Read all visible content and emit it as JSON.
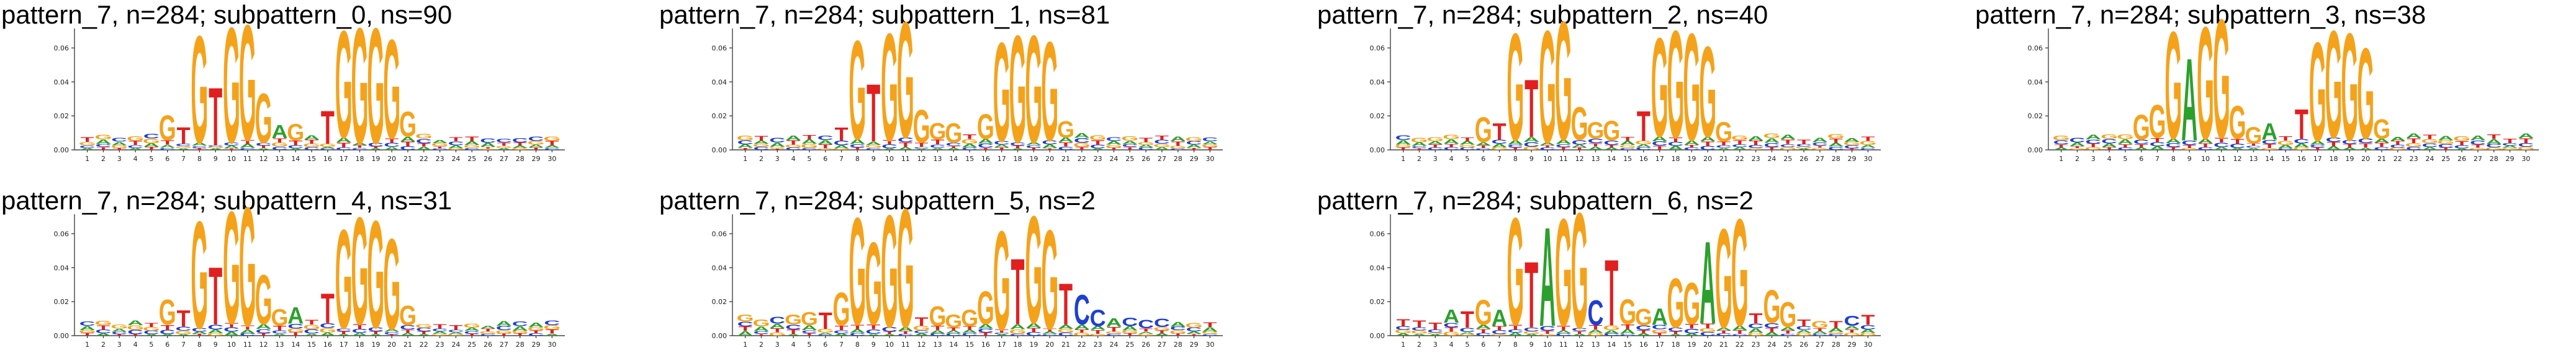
{
  "chart_data": [
    {
      "type": "sequence_logo",
      "title": "pattern_7, n=284; subpattern_0, ns=90",
      "positions": 30,
      "ylim": [
        0,
        0.07
      ],
      "yticks": [
        "0.00",
        "0.02",
        "0.04",
        "0.06"
      ],
      "motif": [
        [
          6,
          "G",
          0.015
        ],
        [
          7,
          "T",
          0.01
        ],
        [
          8,
          "G",
          0.065
        ],
        [
          9,
          "T",
          0.035
        ],
        [
          10,
          "G",
          0.07
        ],
        [
          11,
          "G",
          0.07
        ],
        [
          12,
          "G",
          0.03
        ],
        [
          13,
          "A",
          0.008
        ],
        [
          14,
          "G",
          0.01
        ],
        [
          16,
          "T",
          0.02
        ],
        [
          17,
          "G",
          0.065
        ],
        [
          18,
          "G",
          0.07
        ],
        [
          19,
          "G",
          0.07
        ],
        [
          20,
          "G",
          0.06
        ],
        [
          21,
          "G",
          0.015
        ]
      ]
    },
    {
      "type": "sequence_logo",
      "title": "pattern_7, n=284; subpattern_1, ns=81",
      "positions": 30,
      "ylim": [
        0,
        0.07
      ],
      "yticks": [
        "0.00",
        "0.02",
        "0.04",
        "0.06"
      ],
      "motif": [
        [
          7,
          "T",
          0.008
        ],
        [
          8,
          "G",
          0.06
        ],
        [
          9,
          "T",
          0.035
        ],
        [
          10,
          "G",
          0.065
        ],
        [
          11,
          "G",
          0.07
        ],
        [
          12,
          "G",
          0.02
        ],
        [
          13,
          "G",
          0.01
        ],
        [
          14,
          "G",
          0.012
        ],
        [
          16,
          "G",
          0.015
        ],
        [
          17,
          "G",
          0.06
        ],
        [
          18,
          "G",
          0.065
        ],
        [
          19,
          "G",
          0.065
        ],
        [
          20,
          "G",
          0.06
        ],
        [
          21,
          "G",
          0.01
        ]
      ]
    },
    {
      "type": "sequence_logo",
      "title": "pattern_7, n=284; subpattern_2, ns=40",
      "positions": 30,
      "ylim": [
        0,
        0.07
      ],
      "yticks": [
        "0.00",
        "0.02",
        "0.04",
        "0.06"
      ],
      "motif": [
        [
          6,
          "G",
          0.015
        ],
        [
          7,
          "T",
          0.01
        ],
        [
          8,
          "G",
          0.065
        ],
        [
          9,
          "T",
          0.035
        ],
        [
          10,
          "G",
          0.068
        ],
        [
          11,
          "G",
          0.072
        ],
        [
          12,
          "G",
          0.02
        ],
        [
          13,
          "G",
          0.01
        ],
        [
          14,
          "G",
          0.012
        ],
        [
          16,
          "T",
          0.018
        ],
        [
          17,
          "G",
          0.06
        ],
        [
          18,
          "G",
          0.065
        ],
        [
          19,
          "G",
          0.065
        ],
        [
          20,
          "G",
          0.055
        ],
        [
          21,
          "G",
          0.012
        ]
      ]
    },
    {
      "type": "sequence_logo",
      "title": "pattern_7, n=284; subpattern_3, ns=38",
      "positions": 30,
      "ylim": [
        0,
        0.07
      ],
      "yticks": [
        "0.00",
        "0.02",
        "0.04",
        "0.06"
      ],
      "motif": [
        [
          6,
          "G",
          0.015
        ],
        [
          7,
          "G",
          0.02
        ],
        [
          8,
          "G",
          0.065
        ],
        [
          9,
          "A",
          0.05
        ],
        [
          10,
          "G",
          0.068
        ],
        [
          11,
          "G",
          0.072
        ],
        [
          12,
          "G",
          0.02
        ],
        [
          13,
          "G",
          0.01
        ],
        [
          14,
          "A",
          0.01
        ],
        [
          16,
          "T",
          0.018
        ],
        [
          17,
          "G",
          0.06
        ],
        [
          18,
          "G",
          0.065
        ],
        [
          19,
          "G",
          0.065
        ],
        [
          20,
          "G",
          0.055
        ],
        [
          21,
          "G",
          0.012
        ]
      ]
    },
    {
      "type": "sequence_logo",
      "title": "pattern_7, n=284; subpattern_4, ns=31",
      "positions": 30,
      "ylim": [
        0,
        0.07
      ],
      "yticks": [
        "0.00",
        "0.02",
        "0.04",
        "0.06"
      ],
      "motif": [
        [
          6,
          "G",
          0.015
        ],
        [
          7,
          "T",
          0.01
        ],
        [
          8,
          "G",
          0.065
        ],
        [
          9,
          "T",
          0.035
        ],
        [
          10,
          "G",
          0.068
        ],
        [
          11,
          "G",
          0.072
        ],
        [
          12,
          "G",
          0.03
        ],
        [
          13,
          "G",
          0.01
        ],
        [
          14,
          "A",
          0.01
        ],
        [
          16,
          "T",
          0.018
        ],
        [
          17,
          "G",
          0.06
        ],
        [
          18,
          "G",
          0.065
        ],
        [
          19,
          "G",
          0.065
        ],
        [
          20,
          "G",
          0.055
        ],
        [
          21,
          "G",
          0.012
        ]
      ]
    },
    {
      "type": "sequence_logo",
      "title": "pattern_7, n=284; subpattern_5, ns=2",
      "positions": 30,
      "ylim": [
        0,
        0.07
      ],
      "yticks": [
        "0.00",
        "0.02",
        "0.04",
        "0.06"
      ],
      "motif": [
        [
          1,
          "G",
          0.004
        ],
        [
          2,
          "G",
          0.004
        ],
        [
          3,
          "C",
          0.004
        ],
        [
          4,
          "G",
          0.006
        ],
        [
          5,
          "G",
          0.008
        ],
        [
          6,
          "T",
          0.01
        ],
        [
          7,
          "G",
          0.02
        ],
        [
          8,
          "G",
          0.065
        ],
        [
          9,
          "G",
          0.05
        ],
        [
          10,
          "G",
          0.068
        ],
        [
          11,
          "G",
          0.072
        ],
        [
          12,
          "T",
          0.005
        ],
        [
          13,
          "G",
          0.012
        ],
        [
          14,
          "G",
          0.008
        ],
        [
          15,
          "G",
          0.01
        ],
        [
          16,
          "G",
          0.02
        ],
        [
          17,
          "G",
          0.06
        ],
        [
          18,
          "T",
          0.04
        ],
        [
          19,
          "G",
          0.065
        ],
        [
          20,
          "G",
          0.06
        ],
        [
          21,
          "T",
          0.025
        ],
        [
          22,
          "C",
          0.018
        ],
        [
          23,
          "C",
          0.01
        ],
        [
          24,
          "A",
          0.005
        ],
        [
          25,
          "C",
          0.005
        ],
        [
          26,
          "C",
          0.005
        ],
        [
          27,
          "C",
          0.005
        ]
      ]
    },
    {
      "type": "sequence_logo",
      "title": "pattern_7, n=284; subpattern_6, ns=2",
      "positions": 30,
      "ylim": [
        0,
        0.07
      ],
      "yticks": [
        "0.00",
        "0.02",
        "0.04",
        "0.06"
      ],
      "motif": [
        [
          1,
          "T",
          0.004
        ],
        [
          2,
          "T",
          0.004
        ],
        [
          3,
          "T",
          0.004
        ],
        [
          4,
          "A",
          0.008
        ],
        [
          5,
          "T",
          0.01
        ],
        [
          6,
          "G",
          0.015
        ],
        [
          7,
          "A",
          0.01
        ],
        [
          8,
          "G",
          0.065
        ],
        [
          9,
          "T",
          0.04
        ],
        [
          10,
          "A",
          0.06
        ],
        [
          11,
          "G",
          0.065
        ],
        [
          12,
          "G",
          0.07
        ],
        [
          13,
          "C",
          0.015
        ],
        [
          14,
          "T",
          0.04
        ],
        [
          15,
          "G",
          0.015
        ],
        [
          16,
          "G",
          0.01
        ],
        [
          17,
          "A",
          0.01
        ],
        [
          18,
          "G",
          0.03
        ],
        [
          19,
          "G",
          0.025
        ],
        [
          20,
          "A",
          0.05
        ],
        [
          21,
          "G",
          0.06
        ],
        [
          22,
          "G",
          0.065
        ],
        [
          23,
          "T",
          0.006
        ],
        [
          24,
          "G",
          0.02
        ],
        [
          25,
          "G",
          0.015
        ],
        [
          26,
          "T",
          0.004
        ],
        [
          27,
          "G",
          0.004
        ],
        [
          28,
          "T",
          0.004
        ],
        [
          29,
          "C",
          0.006
        ],
        [
          30,
          "T",
          0.006
        ]
      ]
    }
  ],
  "colors": {
    "A": "#2ca02c",
    "C": "#1f3fd1",
    "G": "#f5a21b",
    "T": "#e01f1f",
    "axis": "#444444"
  }
}
